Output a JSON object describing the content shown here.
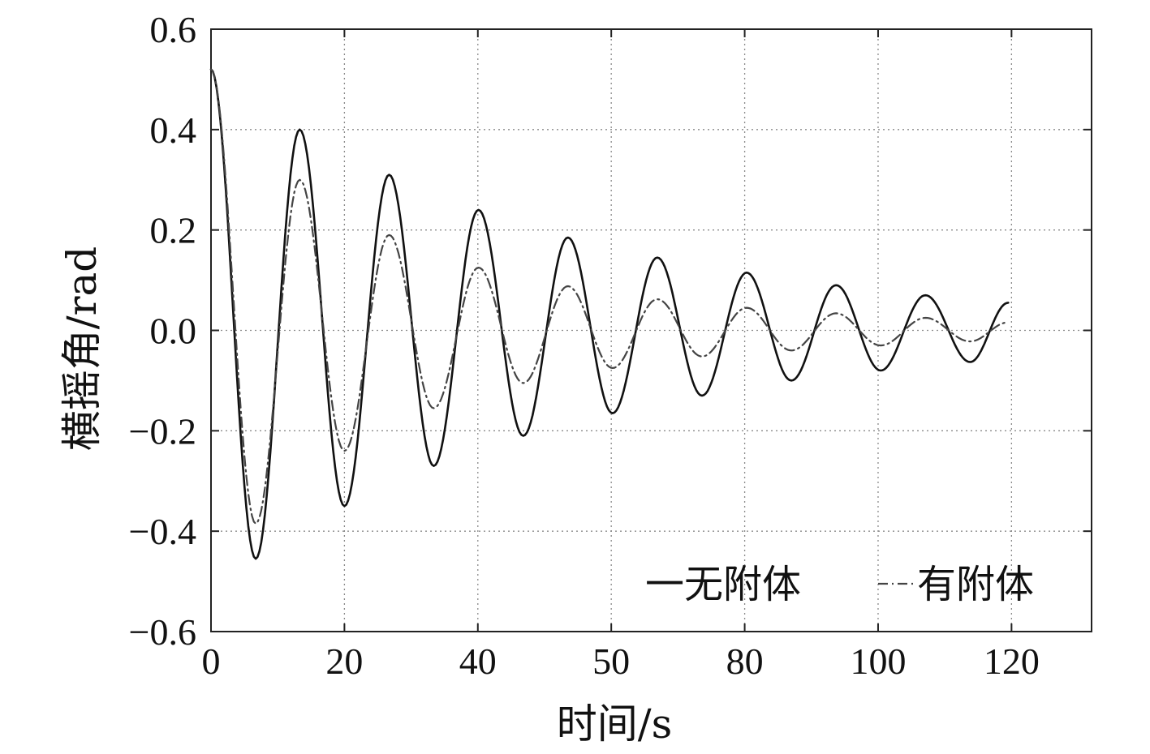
{
  "chart_data": {
    "type": "line",
    "title": "",
    "xlabel": "时间/s",
    "ylabel": "横摇角/rad",
    "xlim": [
      0,
      132
    ],
    "ylim": [
      -0.6,
      0.6
    ],
    "x_tick_labels": [
      "0",
      "20",
      "40",
      "50",
      "80",
      "100",
      "120"
    ],
    "y_tick_labels": [
      "0.6",
      "0.4",
      "0.2",
      "0.0",
      "−0.2",
      "−0.4",
      "−0.6"
    ],
    "grid": true,
    "legend_position": "bottom-right",
    "series": [
      {
        "name": "无附体",
        "legend_label": "一无附体",
        "style": "solid",
        "color": "#111111",
        "points": [
          [
            0,
            0.52
          ],
          [
            6.7,
            -0.455
          ],
          [
            13.3,
            0.4
          ],
          [
            20.0,
            -0.35
          ],
          [
            26.7,
            0.31
          ],
          [
            33.4,
            -0.27
          ],
          [
            40.1,
            0.24
          ],
          [
            46.8,
            -0.21
          ],
          [
            53.5,
            0.185
          ],
          [
            60.2,
            -0.165
          ],
          [
            66.9,
            0.145
          ],
          [
            73.6,
            -0.13
          ],
          [
            80.3,
            0.115
          ],
          [
            87.0,
            -0.1
          ],
          [
            93.7,
            0.09
          ],
          [
            100.4,
            -0.08
          ],
          [
            107.1,
            0.07
          ],
          [
            113.8,
            -0.063
          ],
          [
            119.5,
            0.055
          ]
        ]
      },
      {
        "name": "有附体",
        "legend_label": "有附体",
        "style": "dash-dot",
        "color": "#444444",
        "points": [
          [
            0,
            0.52
          ],
          [
            6.7,
            -0.385
          ],
          [
            13.3,
            0.3
          ],
          [
            20.0,
            -0.24
          ],
          [
            26.7,
            0.19
          ],
          [
            33.4,
            -0.155
          ],
          [
            40.1,
            0.125
          ],
          [
            46.8,
            -0.105
          ],
          [
            53.5,
            0.088
          ],
          [
            60.2,
            -0.075
          ],
          [
            66.9,
            0.062
          ],
          [
            73.6,
            -0.052
          ],
          [
            80.3,
            0.045
          ],
          [
            87.0,
            -0.04
          ],
          [
            93.7,
            0.034
          ],
          [
            100.4,
            -0.03
          ],
          [
            107.1,
            0.025
          ],
          [
            113.8,
            -0.022
          ],
          [
            119.5,
            0.016
          ]
        ]
      }
    ]
  }
}
